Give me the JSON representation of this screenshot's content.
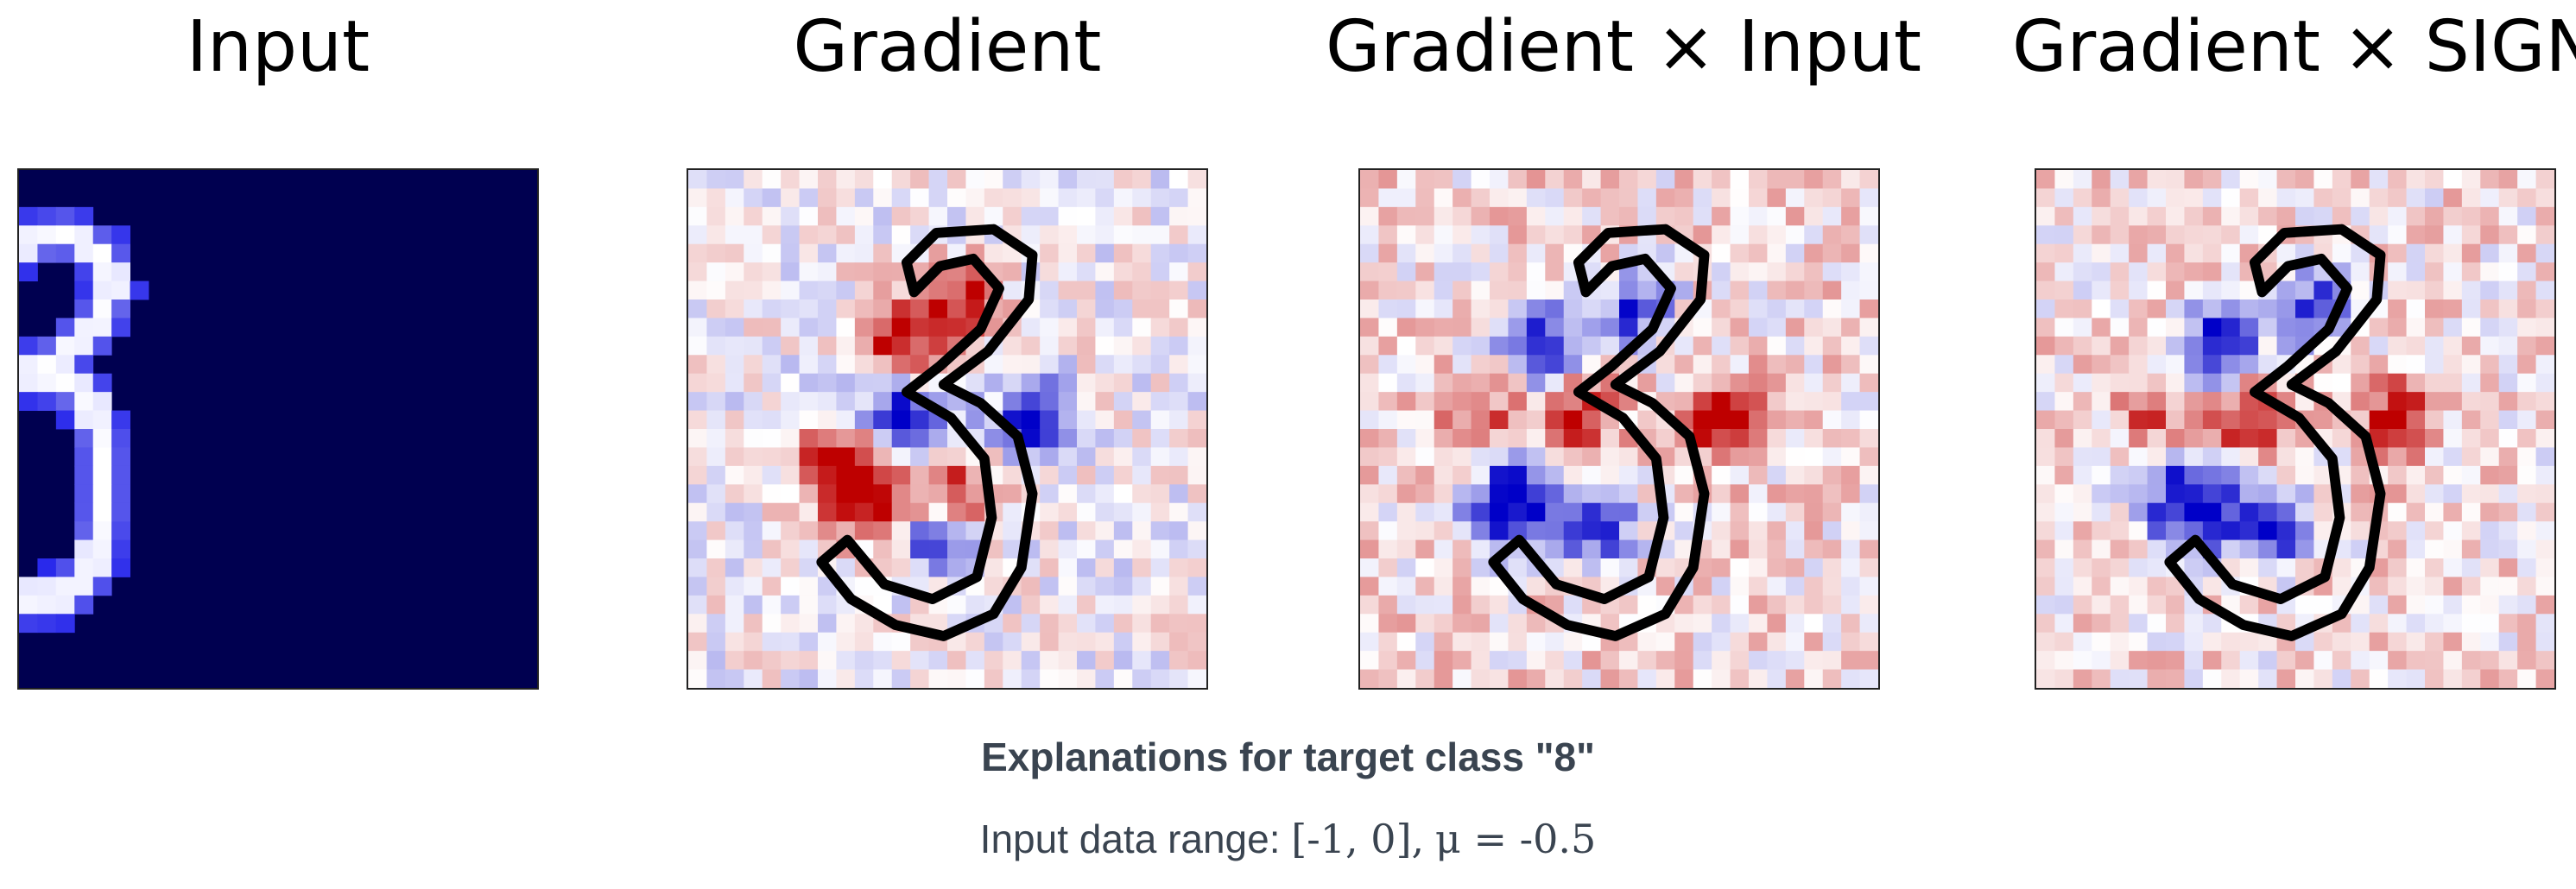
{
  "panels": [
    {
      "title": "Input"
    },
    {
      "title": "Gradient"
    },
    {
      "title": "Gradient × Input"
    },
    {
      "title": "Gradient × SIGN"
    }
  ],
  "caption": {
    "title": "Explanations for target class \"8\"",
    "subtitle_text": "Input data range:",
    "subtitle_range": "[-1, 0],",
    "subtitle_mu": "μ = -0.5"
  },
  "colors": {
    "input_background": "#000050",
    "positive": "#d40000",
    "negative": "#0000d8",
    "neutral": "#ffffff",
    "outline": "#000000"
  },
  "icons": [
    "digit-3-image",
    "digit-3-outline"
  ]
}
